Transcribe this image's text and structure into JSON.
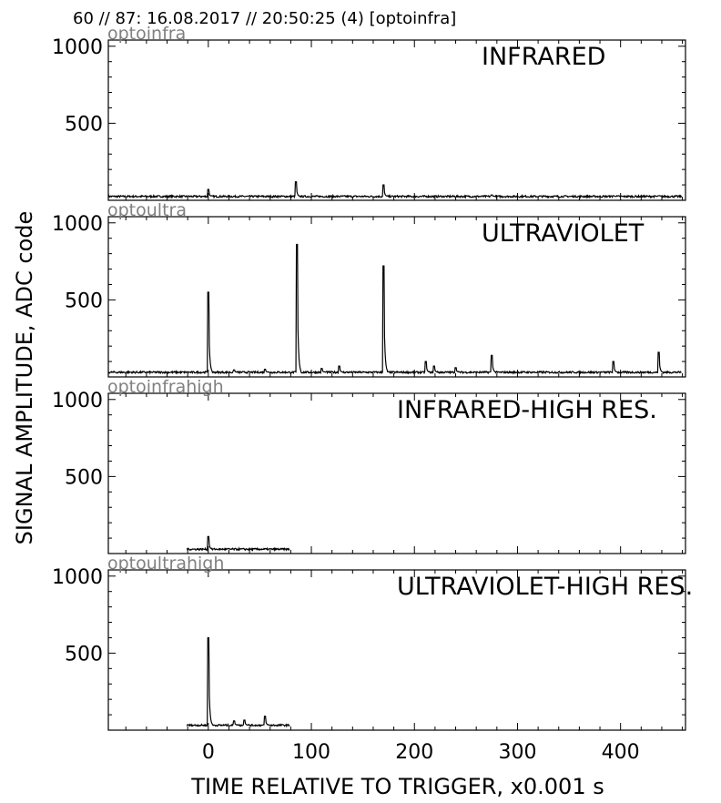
{
  "header": "60 // 87:   16.08.2017 // 20:50:25 (4)  [optoinfra]",
  "xlabel": "TIME RELATIVE TO TRIGGER,   x0.001 s",
  "ylabel": "SIGNAL AMPLITUDE,  ADC code",
  "chart_data": [
    {
      "type": "line",
      "id": "optoinfra",
      "tag": "optoinfra",
      "title": "INFRARED",
      "xlim": [
        -97,
        463
      ],
      "ylim": [
        0,
        1040
      ],
      "x_ticks": [
        0,
        100,
        200,
        300,
        400
      ],
      "y_ticks": [
        500,
        1000
      ],
      "baseline": 25,
      "x_start": -97,
      "x_end": 459,
      "peaks": [
        [
          0,
          70
        ],
        [
          85,
          120
        ],
        [
          170,
          100
        ],
        [
          275,
          35
        ],
        [
          393,
          30
        ],
        [
          437,
          30
        ]
      ]
    },
    {
      "type": "line",
      "id": "optoultra",
      "tag": "optoultra",
      "title": "ULTRAVIOLET",
      "xlim": [
        -97,
        463
      ],
      "ylim": [
        0,
        1040
      ],
      "x_ticks": [
        0,
        100,
        200,
        300,
        400
      ],
      "y_ticks": [
        500,
        1000
      ],
      "baseline": 30,
      "x_start": -97,
      "x_end": 459,
      "peaks": [
        [
          0,
          550
        ],
        [
          86,
          860
        ],
        [
          170,
          720
        ],
        [
          211,
          100
        ],
        [
          219,
          70
        ],
        [
          240,
          60
        ],
        [
          275,
          140
        ],
        [
          393,
          100
        ],
        [
          437,
          160
        ],
        [
          110,
          55
        ],
        [
          127,
          70
        ],
        [
          25,
          45
        ],
        [
          55,
          50
        ]
      ]
    },
    {
      "type": "line",
      "id": "optoinfrahigh",
      "tag": "optoinfrahigh",
      "title": "INFRARED-HIGH RES.",
      "xlim": [
        -97,
        463
      ],
      "ylim": [
        0,
        1040
      ],
      "x_ticks": [
        0,
        100,
        200,
        300,
        400
      ],
      "y_ticks": [
        500,
        1000
      ],
      "baseline": 28,
      "x_start": -21,
      "x_end": 79,
      "peaks": [
        [
          0,
          110
        ]
      ]
    },
    {
      "type": "line",
      "id": "optoultrahigh",
      "tag": "optoultrahigh",
      "title": "ULTRAVIOLET-HIGH RES.",
      "xlim": [
        -97,
        463
      ],
      "ylim": [
        0,
        1040
      ],
      "x_ticks": [
        0,
        100,
        200,
        300,
        400
      ],
      "y_ticks": [
        500,
        1000
      ],
      "baseline": 32,
      "x_start": -21,
      "x_end": 79,
      "peaks": [
        [
          0,
          600
        ],
        [
          55,
          90
        ],
        [
          35,
          65
        ],
        [
          25,
          60
        ]
      ]
    }
  ]
}
